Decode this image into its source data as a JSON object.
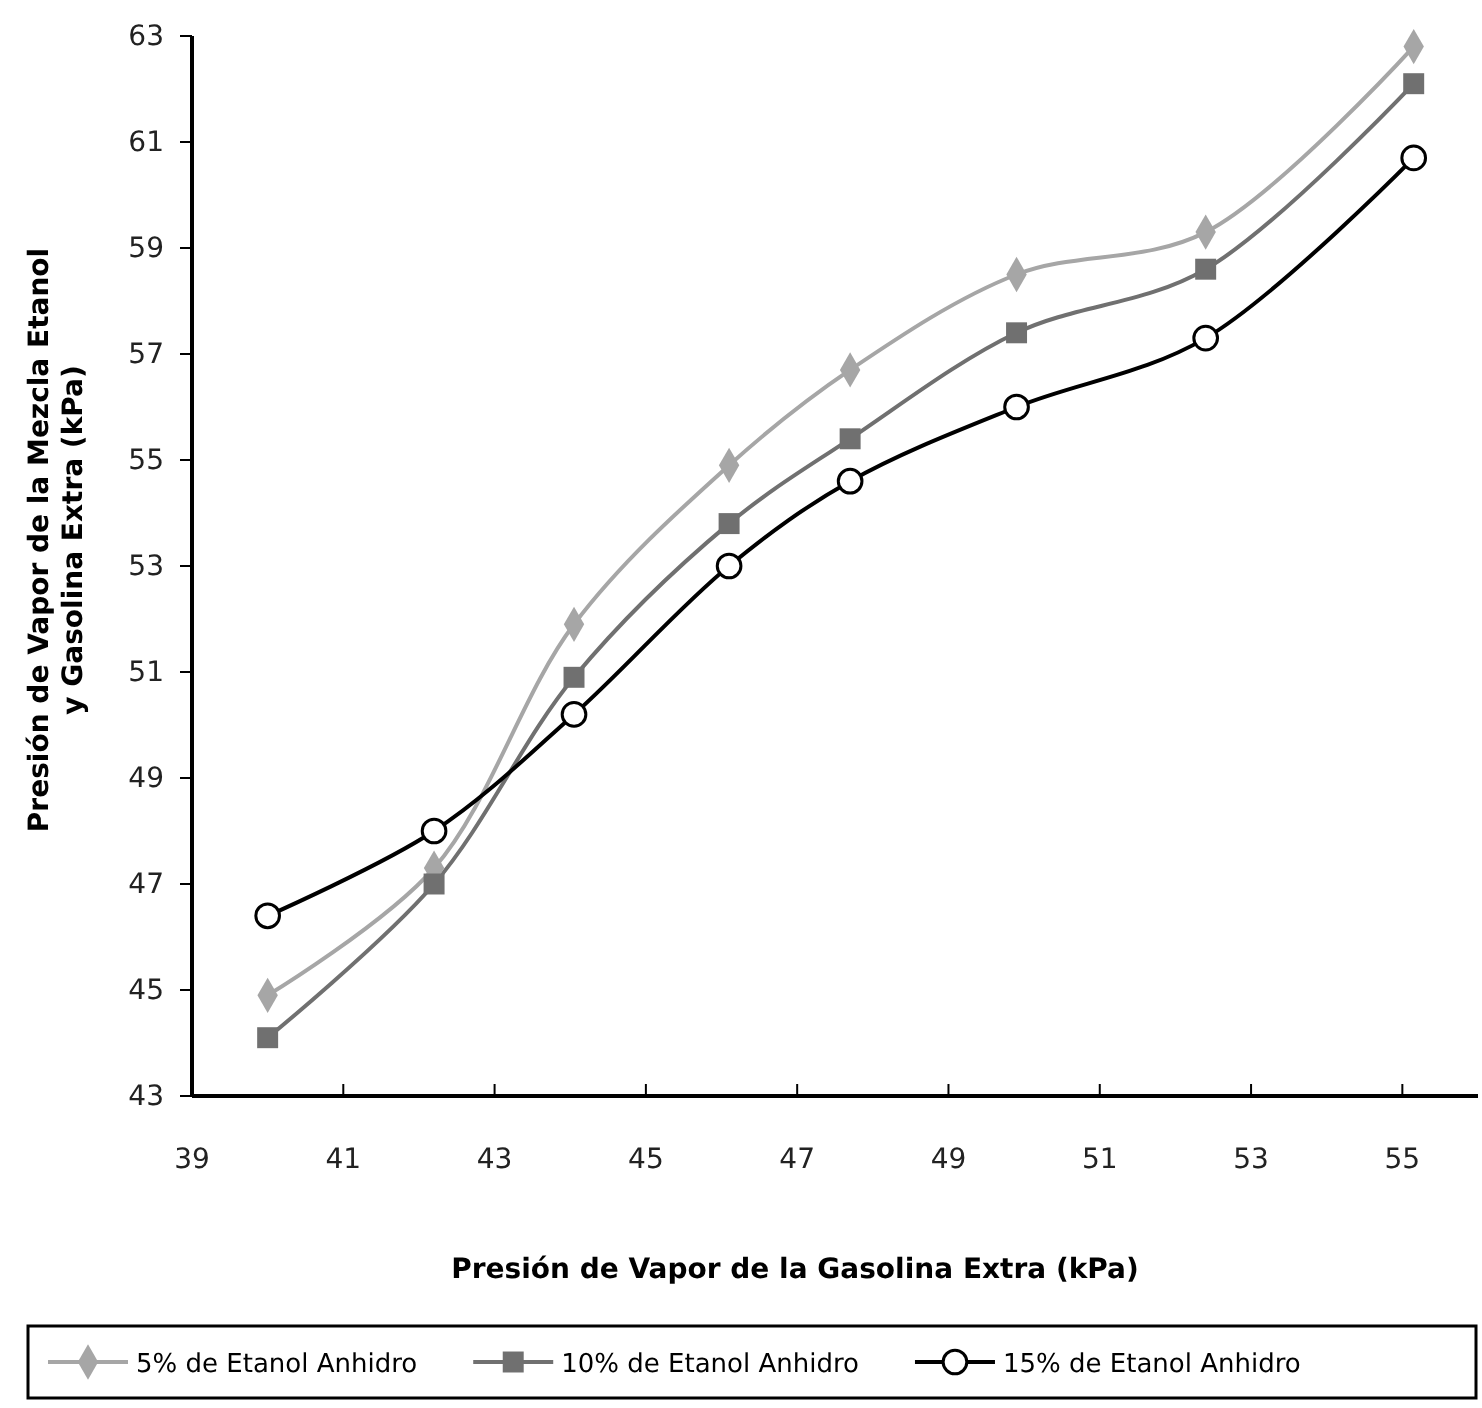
{
  "chart_data": {
    "type": "line",
    "xlabel": "Presión de Vapor de la Gasolina Extra (kPa)",
    "ylabel": "Presión de Vapor de la Mezcla Etanol\ny Gasolina Extra (kPa)",
    "x": [
      40,
      42.2,
      44.05,
      46.1,
      47.7,
      49.9,
      52.4,
      55.15
    ],
    "xlim": [
      39,
      56
    ],
    "xticks": [
      39,
      41,
      43,
      45,
      47,
      49,
      51,
      53,
      55
    ],
    "ylim": [
      43,
      63
    ],
    "yticks": [
      43,
      45,
      47,
      49,
      51,
      53,
      55,
      57,
      59,
      61,
      63
    ],
    "grid": false,
    "legend": "bottom",
    "line_style": "solid",
    "series": [
      {
        "name": "5% de Etanol Anhidro",
        "color": "#a6a6a6",
        "marker": "diamond",
        "values": [
          44.9,
          47.3,
          51.9,
          54.9,
          56.7,
          58.5,
          59.3,
          62.8
        ]
      },
      {
        "name": "10% de Etanol Anhidro",
        "color": "#707070",
        "marker": "square",
        "values": [
          44.1,
          47.0,
          50.9,
          53.8,
          55.4,
          57.4,
          58.6,
          62.1
        ]
      },
      {
        "name": "15% de Etanol Anhidro",
        "color": "#000000",
        "marker": "circle",
        "values": [
          46.4,
          48.0,
          50.2,
          53.0,
          54.6,
          56.0,
          57.3,
          60.7
        ]
      }
    ]
  }
}
